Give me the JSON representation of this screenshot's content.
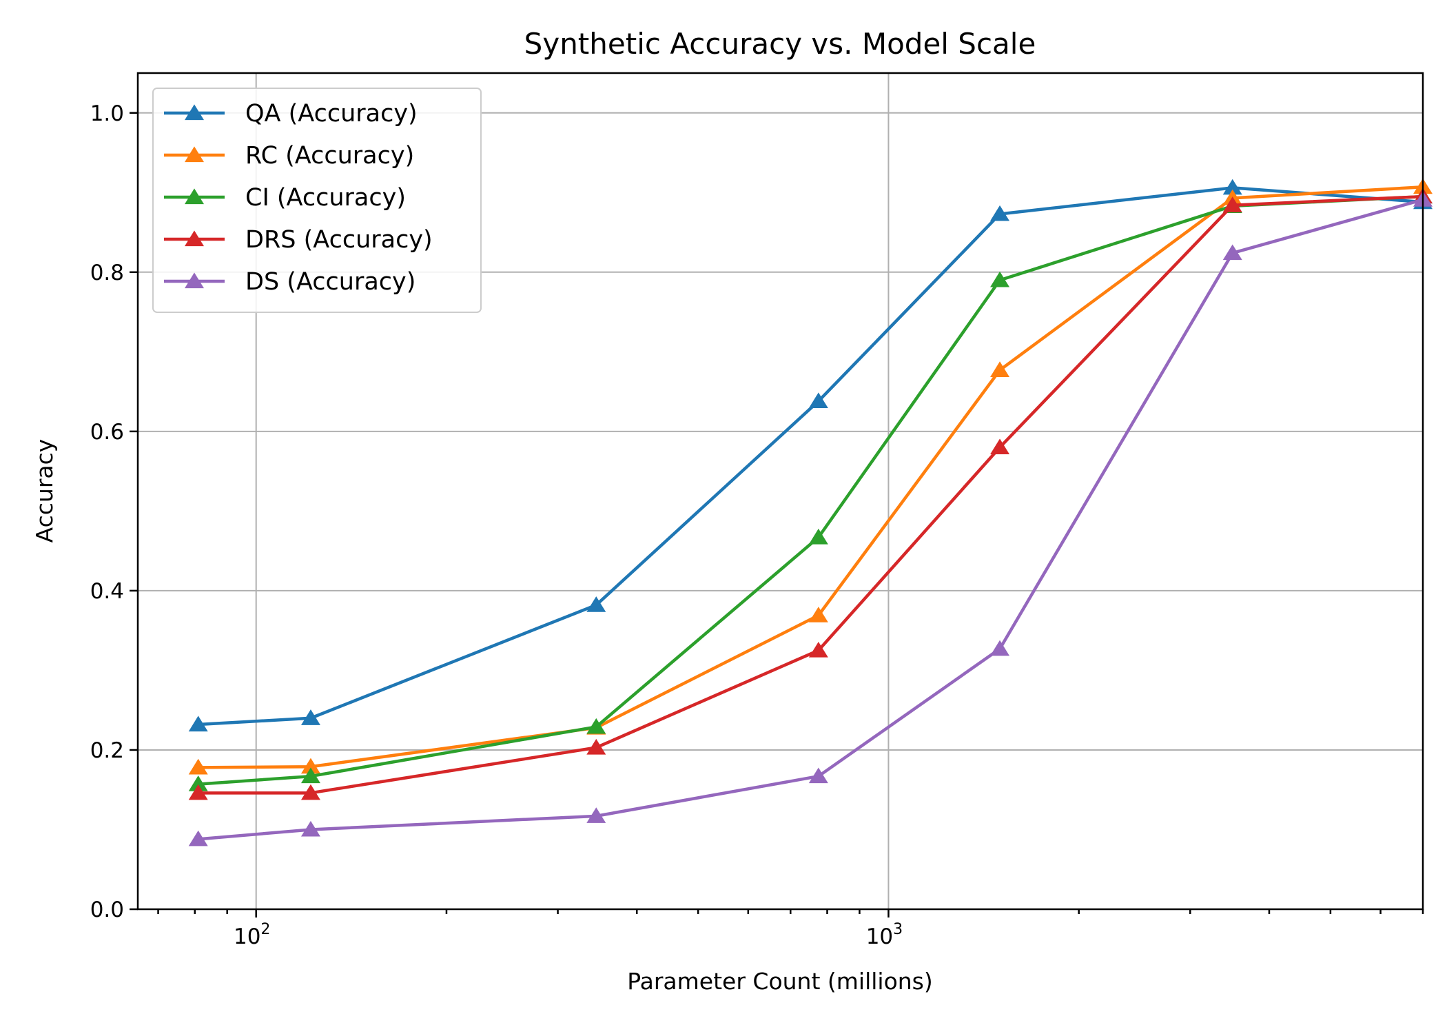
{
  "chart_data": {
    "type": "line",
    "title": "Synthetic Accuracy vs. Model Scale",
    "xlabel": "Parameter Count (millions)",
    "ylabel": "Accuracy",
    "xscale": "log",
    "xlim": [
      65,
      7000
    ],
    "ylim": [
      0,
      1.05
    ],
    "x": [
      81,
      122,
      345,
      775,
      1500,
      3500,
      7000
    ],
    "xticks": [
      {
        "value": 100,
        "base": "10",
        "exp": "2"
      },
      {
        "value": 1000,
        "base": "10",
        "exp": "3"
      }
    ],
    "yticks": [
      {
        "value": 0.0,
        "label": "0.0"
      },
      {
        "value": 0.2,
        "label": "0.2"
      },
      {
        "value": 0.4,
        "label": "0.4"
      },
      {
        "value": 0.6,
        "label": "0.6"
      },
      {
        "value": 0.8,
        "label": "0.8"
      },
      {
        "value": 1.0,
        "label": "1.0"
      }
    ],
    "grid": true,
    "legend_position": "upper-left",
    "marker": "triangle-up",
    "series": [
      {
        "name": "QA (Accuracy)",
        "color": "#1f77b4",
        "values": [
          0.232,
          0.24,
          0.382,
          0.638,
          0.873,
          0.906,
          0.888
        ]
      },
      {
        "name": "RC (Accuracy)",
        "color": "#ff7f0e",
        "values": [
          0.178,
          0.179,
          0.228,
          0.369,
          0.677,
          0.893,
          0.907
        ]
      },
      {
        "name": "CI (Accuracy)",
        "color": "#2ca02c",
        "values": [
          0.157,
          0.167,
          0.229,
          0.467,
          0.79,
          0.883,
          0.895
        ]
      },
      {
        "name": "DRS (Accuracy)",
        "color": "#d62728",
        "values": [
          0.146,
          0.146,
          0.203,
          0.325,
          0.58,
          0.884,
          0.895
        ]
      },
      {
        "name": "DS (Accuracy)",
        "color": "#9467bd",
        "values": [
          0.088,
          0.1,
          0.117,
          0.167,
          0.327,
          0.824,
          0.891
        ]
      }
    ]
  }
}
